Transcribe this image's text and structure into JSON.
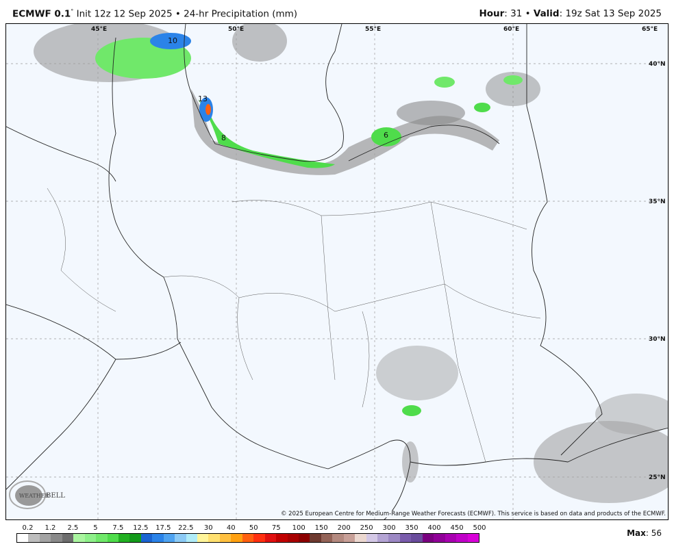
{
  "header": {
    "model": "ECMWF 0.1",
    "degree": "°",
    "init": " Init 12z 12 Sep 2025 • 24-hr Precipitation (mm)",
    "hour_label": "Hour",
    "hour_value": ": 31 • ",
    "valid_label": "Valid",
    "valid_value": ": 19z Sat 13 Sep 2025"
  },
  "map": {
    "lon_labels": [
      "45°E",
      "50°E",
      "55°E",
      "60°E",
      "65°E"
    ],
    "lat_labels": [
      "40°N",
      "35°N",
      "30°N",
      "25°N"
    ],
    "contour_labels": [
      "10",
      "13",
      "8",
      "6"
    ],
    "background_color": "#f3f8fe"
  },
  "copyright": "© 2025 European Centre for Medium-Range Weather Forecasts (ECMWF). This service is based on data and products of the ECMWF.",
  "logo": "WeatherBELL Analytics LLC",
  "colorbar": {
    "ticks": [
      "0.2",
      "1.2",
      "2.5",
      "5",
      "7.5",
      "12.5",
      "17.5",
      "22.5",
      "30",
      "40",
      "50",
      "75",
      "100",
      "150",
      "200",
      "250",
      "300",
      "350",
      "400",
      "450",
      "500"
    ],
    "colors": [
      "#ffffff",
      "#bdbdbd",
      "#a3a3a3",
      "#8a8a8a",
      "#6e6e6e",
      "#aaf5a0",
      "#8ef08a",
      "#70e86a",
      "#4fdc4b",
      "#22b022",
      "#139a1a",
      "#1a64d2",
      "#2b83e8",
      "#4fa3f0",
      "#8ccaf5",
      "#b0ecf8",
      "#fff59a",
      "#ffe070",
      "#ffc040",
      "#ffa010",
      "#ff6010",
      "#ff3010",
      "#e01010",
      "#c00000",
      "#a80000",
      "#8c0000",
      "#6e3a30",
      "#946458",
      "#b48a80",
      "#c8a098",
      "#ecd8d0",
      "#d4c8e6",
      "#b4a4d4",
      "#9c88c4",
      "#7a5cac",
      "#6a4c9c",
      "#7a0080",
      "#900098",
      "#a800b0",
      "#c000c8",
      "#d800d8"
    ]
  },
  "max_label": "Max",
  "max_value": ": 56"
}
